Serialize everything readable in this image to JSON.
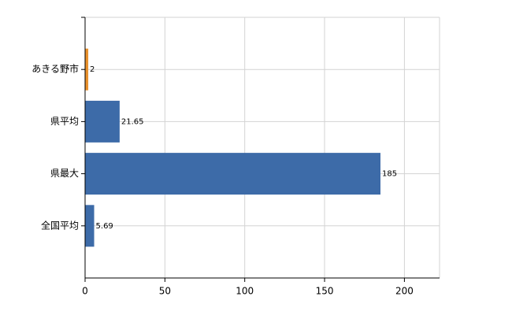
{
  "chart_data": {
    "type": "hbar",
    "categories": [
      "あきる野市",
      "県平均",
      "県最大",
      "全国平均"
    ],
    "values": [
      2,
      21.65,
      185,
      5.69
    ],
    "colors": [
      "#e8912d",
      "#3d6ba8",
      "#3d6ba8",
      "#3d6ba8"
    ],
    "xlim": [
      0,
      222
    ],
    "xticks": [
      0,
      50,
      100,
      150,
      200
    ],
    "grid": true
  }
}
